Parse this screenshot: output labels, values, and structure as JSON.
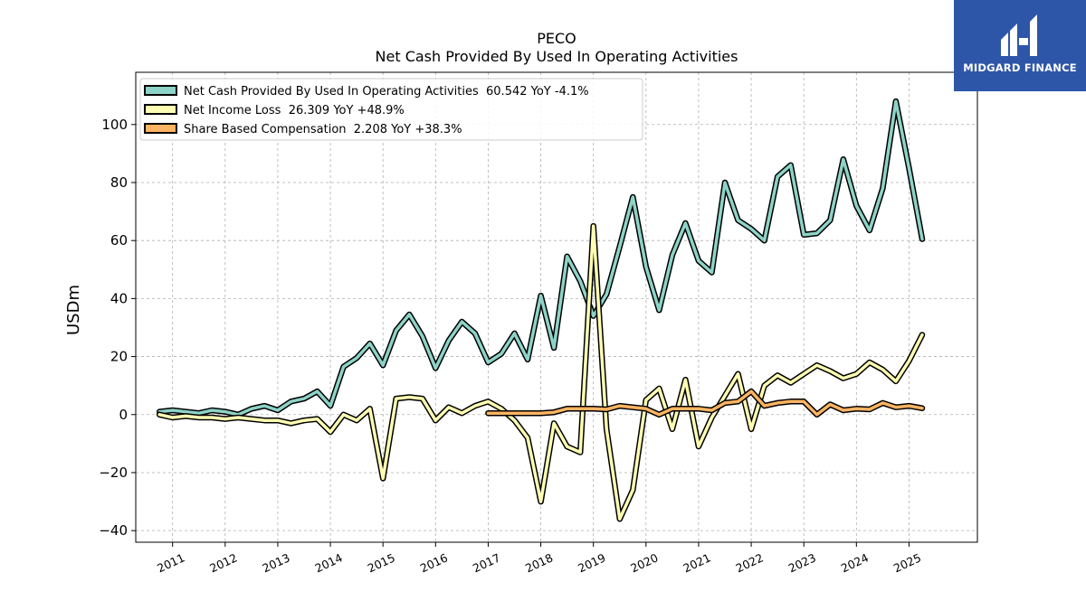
{
  "brand": {
    "name": "MIDGARD FINANCE",
    "color": "#2d56a8"
  },
  "chart_data": {
    "type": "line",
    "title": "PECO",
    "subtitle": "Net Cash Provided By Used In Operating Activities",
    "ylabel": "USDm",
    "xlabel": "",
    "ylim": [
      -44,
      118
    ],
    "xlim": [
      2010.3,
      2026.3
    ],
    "yticks": [
      -40,
      -20,
      0,
      20,
      40,
      60,
      80,
      100
    ],
    "xticks": [
      "2011",
      "2012",
      "2013",
      "2014",
      "2015",
      "2016",
      "2017",
      "2018",
      "2019",
      "2020",
      "2021",
      "2022",
      "2023",
      "2024",
      "2025"
    ],
    "grid": true,
    "legend_position": "top-left",
    "series": [
      {
        "name": "Net Cash Provided By Used In Operating Activities",
        "legend_label": "Net Cash Provided By Used In Operating Activities  60.542 YoY -4.1%",
        "color": "#8dd3c7",
        "x": [
          2010.75,
          2011.0,
          2011.25,
          2011.5,
          2011.75,
          2012.0,
          2012.25,
          2012.5,
          2012.75,
          2013.0,
          2013.25,
          2013.5,
          2013.75,
          2014.0,
          2014.25,
          2014.5,
          2014.75,
          2015.0,
          2015.25,
          2015.5,
          2015.75,
          2016.0,
          2016.25,
          2016.5,
          2016.75,
          2017.0,
          2017.25,
          2017.5,
          2017.75,
          2018.0,
          2018.25,
          2018.5,
          2018.75,
          2019.0,
          2019.25,
          2019.5,
          2019.75,
          2020.0,
          2020.25,
          2020.5,
          2020.75,
          2021.0,
          2021.25,
          2021.5,
          2021.75,
          2022.0,
          2022.25,
          2022.5,
          2022.75,
          2023.0,
          2023.25,
          2023.5,
          2023.75,
          2024.0,
          2024.25,
          2024.5,
          2024.75,
          2025.0,
          2025.25
        ],
        "values": [
          1,
          1.5,
          1,
          0.5,
          1.5,
          1,
          0,
          2,
          3,
          1.5,
          4.5,
          5.5,
          8,
          3,
          16.5,
          19.5,
          24.5,
          17,
          29,
          34.5,
          27,
          16,
          25.5,
          32,
          28,
          18,
          21,
          28,
          19,
          41,
          23,
          54.5,
          46,
          34,
          41.5,
          58,
          75,
          51,
          36,
          55,
          66,
          53,
          49,
          80,
          67,
          64,
          60,
          82,
          86,
          62,
          62.5,
          67,
          88,
          72,
          63.5,
          78,
          108,
          85,
          60.5
        ]
      },
      {
        "name": "Net Income Loss",
        "legend_label": "Net Income Loss  26.309 YoY +48.9%",
        "color": "#ffffb3",
        "x": [
          2010.75,
          2011.0,
          2011.25,
          2011.5,
          2011.75,
          2012.0,
          2012.25,
          2012.5,
          2012.75,
          2013.0,
          2013.25,
          2013.5,
          2013.75,
          2014.0,
          2014.25,
          2014.5,
          2014.75,
          2015.0,
          2015.25,
          2015.5,
          2015.75,
          2016.0,
          2016.25,
          2016.5,
          2016.75,
          2017.0,
          2017.25,
          2017.5,
          2017.75,
          2018.0,
          2018.25,
          2018.5,
          2018.75,
          2019.0,
          2019.25,
          2019.5,
          2019.75,
          2020.0,
          2020.25,
          2020.5,
          2020.75,
          2021.0,
          2021.25,
          2021.5,
          2021.75,
          2022.0,
          2022.25,
          2022.5,
          2022.75,
          2023.0,
          2023.25,
          2023.5,
          2023.75,
          2024.0,
          2024.25,
          2024.5,
          2024.75,
          2025.0,
          2025.25
        ],
        "values": [
          0,
          -1,
          -0.5,
          -1,
          -1,
          -1.5,
          -1,
          -1.5,
          -2,
          -2,
          -3,
          -2,
          -1.5,
          -6,
          0,
          -2,
          2,
          -22,
          5.5,
          6,
          5.5,
          -2,
          2.5,
          0.5,
          3,
          4.5,
          2,
          -2,
          -8,
          -30,
          -3,
          -11,
          -13,
          65,
          -5,
          -36,
          -26,
          5,
          9,
          -5,
          12,
          -11,
          -1,
          6.5,
          14,
          -5,
          10,
          13.5,
          11,
          14,
          17,
          15,
          12.5,
          14,
          18,
          15.5,
          11.5,
          18.5,
          27.5
        ]
      },
      {
        "name": "Share Based Compensation",
        "legend_label": "Share Based Compensation  2.208 YoY +38.3%",
        "color": "#fdb462",
        "x": [
          2017.0,
          2017.25,
          2017.5,
          2017.75,
          2018.0,
          2018.25,
          2018.5,
          2018.75,
          2019.0,
          2019.25,
          2019.5,
          2019.75,
          2020.0,
          2020.25,
          2020.5,
          2020.75,
          2021.0,
          2021.25,
          2021.5,
          2021.75,
          2022.0,
          2022.25,
          2022.5,
          2022.75,
          2023.0,
          2023.25,
          2023.5,
          2023.75,
          2024.0,
          2024.25,
          2024.5,
          2024.75,
          2025.0,
          2025.25
        ],
        "values": [
          0.5,
          0.5,
          0.5,
          0.5,
          0.5,
          0.8,
          2,
          2,
          2,
          1.8,
          3,
          2.5,
          2,
          0,
          2,
          2,
          2,
          1.5,
          4,
          4.5,
          8,
          3,
          4,
          4.5,
          4.5,
          0,
          3.5,
          1.5,
          2,
          1.8,
          4,
          2.5,
          3,
          2.2
        ]
      }
    ]
  }
}
